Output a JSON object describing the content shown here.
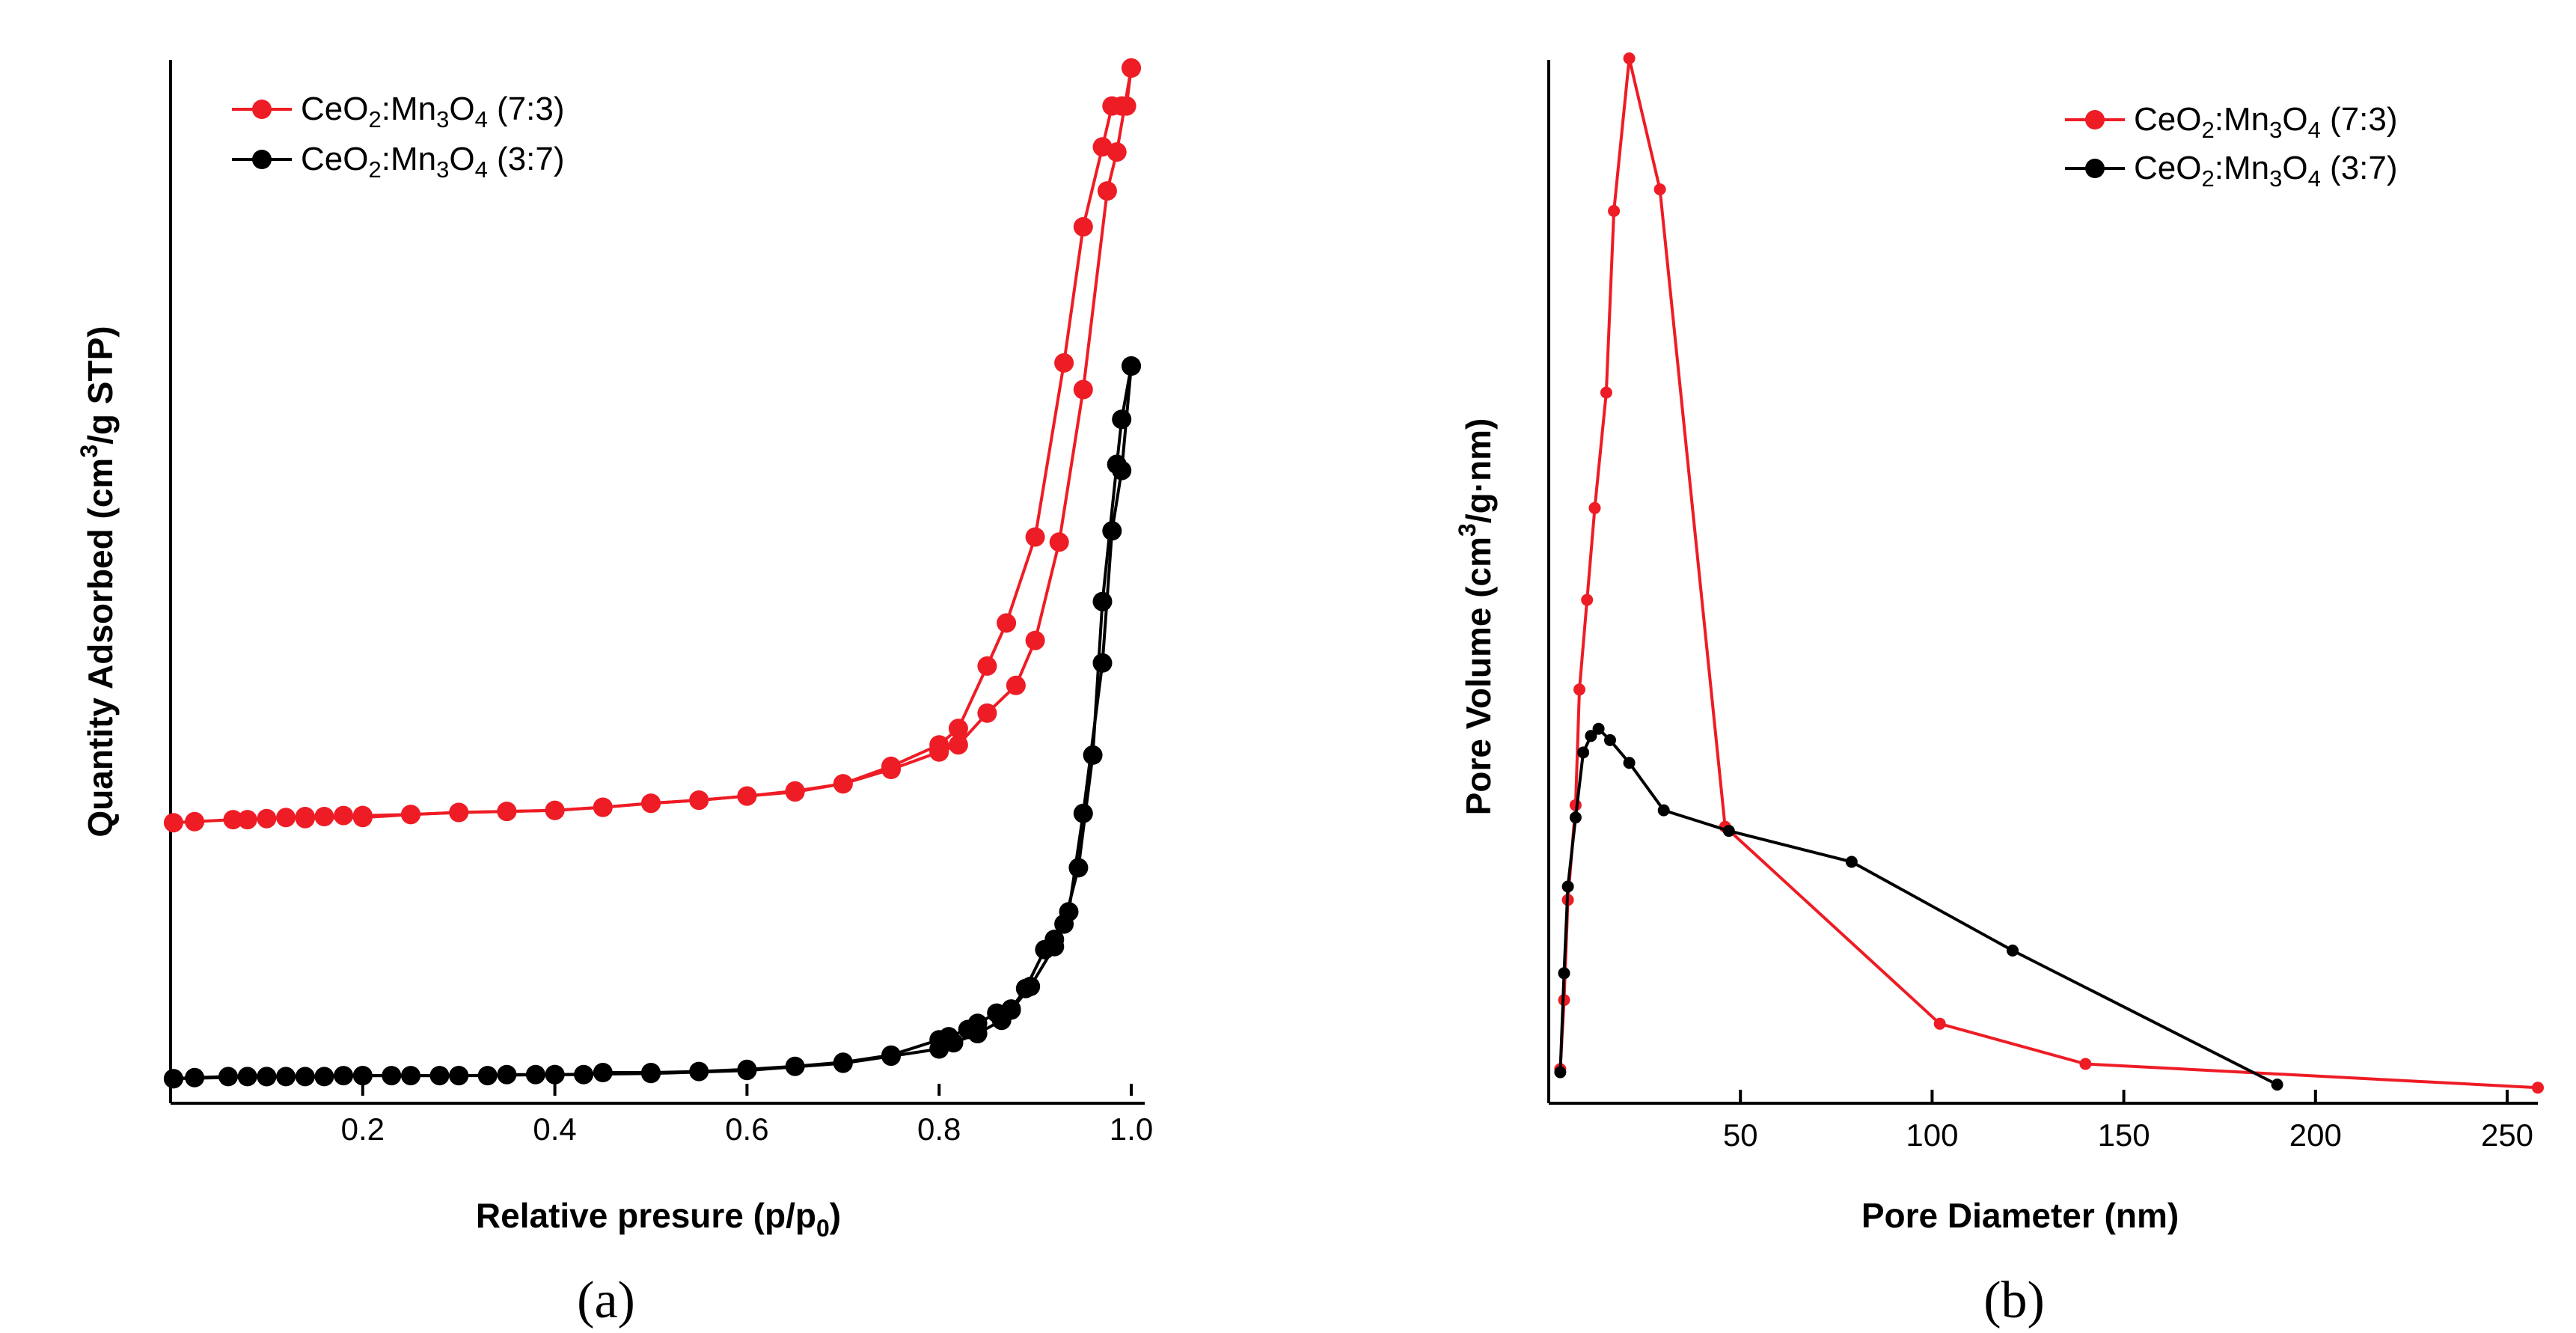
{
  "chart_data": [
    {
      "type": "line",
      "panel_label": "(a)",
      "title": "",
      "xlabel": "Relative presure (p/p0)",
      "xlabel_main": "Relative presure (p/p",
      "xlabel_sub": "0",
      "xlabel_end": ")",
      "ylabel": "Quantity Adsorbed (cm3/g STP)",
      "ylabel_pre": "Quantity Adsorbed (cm",
      "ylabel_sup": "3",
      "ylabel_post": "/g STP)",
      "xlim": [
        0,
        1.0
      ],
      "ylim": [
        0,
        100
      ],
      "xticks": [
        0.2,
        0.4,
        0.6,
        0.8,
        1.0
      ],
      "xtick_labels": [
        "0.2",
        "0.4",
        "0.6",
        "0.8",
        "1.0"
      ],
      "y_ticks_shown": false,
      "legend_position": "top-left",
      "series": [
        {
          "name": "CeO2:Mn3O4 (7:3)",
          "legend": [
            "CeO",
            "2",
            ":Mn",
            "3",
            "O",
            "4",
            " (7:3)"
          ],
          "color": "#ee1c25",
          "segments": [
            {
              "x": [
                0.003,
                0.025,
                0.065,
                0.08,
                0.1,
                0.12,
                0.14,
                0.16,
                0.18,
                0.2,
                0.25,
                0.3,
                0.35,
                0.4,
                0.45,
                0.5,
                0.55,
                0.6,
                0.65,
                0.7,
                0.75,
                0.8,
                0.82,
                0.85,
                0.87,
                0.9,
                0.93,
                0.95,
                0.97,
                0.98,
                0.99,
                0.995,
                1.0
              ],
              "y": [
                25.5,
                25.6,
                25.8,
                25.8,
                25.9,
                26.0,
                26.1,
                26.1,
                26.2,
                26.2,
                26.3,
                26.5,
                26.6,
                26.7,
                27.0,
                27.4,
                27.7,
                28.1,
                28.6,
                29.3,
                31.0,
                33.1,
                34.7,
                40.8,
                45.0,
                53.4,
                70.4,
                83.7,
                91.5,
                95.5,
                95.5,
                95.5,
                99.2
              ]
            },
            {
              "x": [
                0.14,
                0.2,
                0.25,
                0.3,
                0.35,
                0.4,
                0.45,
                0.5,
                0.55,
                0.6,
                0.65,
                0.7,
                0.75,
                0.8,
                0.82,
                0.85,
                0.88,
                0.9,
                0.925,
                0.95,
                0.975,
                0.985,
                1.0
              ],
              "y": [
                25.9,
                26.0,
                26.3,
                26.5,
                26.6,
                26.7,
                27.0,
                27.4,
                27.7,
                28.1,
                28.5,
                29.3,
                30.7,
                32.4,
                33.1,
                36.2,
                38.9,
                43.3,
                52.9,
                67.8,
                87.2,
                91.0,
                99.2
              ]
            }
          ]
        },
        {
          "name": "CeO2:Mn3O4 (3:7)",
          "legend": [
            "CeO",
            "2",
            ":Mn",
            "3",
            "O",
            "4",
            " (3:7)"
          ],
          "color": "#000000",
          "segments": [
            {
              "x": [
                0.003,
                0.025,
                0.06,
                0.08,
                0.1,
                0.12,
                0.14,
                0.16,
                0.18,
                0.2,
                0.23,
                0.25,
                0.28,
                0.3,
                0.33,
                0.35,
                0.38,
                0.4,
                0.43,
                0.45,
                0.5,
                0.55,
                0.6,
                0.65,
                0.7,
                0.75,
                0.8,
                0.81,
                0.83,
                0.84,
                0.86,
                0.875,
                0.89,
                0.91,
                0.92,
                0.93,
                0.945,
                0.96,
                0.97,
                0.985,
                0.99,
                1.0
              ],
              "y": [
                0.5,
                0.6,
                0.7,
                0.7,
                0.7,
                0.7,
                0.7,
                0.7,
                0.8,
                0.8,
                0.8,
                0.8,
                0.8,
                0.8,
                0.8,
                0.9,
                0.9,
                0.9,
                0.9,
                1.1,
                1.1,
                1.2,
                1.4,
                1.7,
                2.1,
                2.8,
                4.3,
                4.6,
                5.3,
                5.9,
                6.9,
                7.3,
                9.3,
                13.1,
                14.1,
                15.6,
                21.1,
                32.1,
                47.1,
                60.5,
                64.9,
                70.1
              ]
            },
            {
              "x": [
                0.003,
                0.1,
                0.2,
                0.3,
                0.4,
                0.5,
                0.6,
                0.7,
                0.75,
                0.8,
                0.815,
                0.84,
                0.865,
                0.875,
                0.895,
                0.92,
                0.935,
                0.95,
                0.97,
                0.98,
                0.99,
                1.0
              ],
              "y": [
                0.5,
                0.7,
                0.8,
                0.8,
                0.9,
                1.0,
                1.3,
                2.0,
                2.7,
                3.4,
                4.0,
                4.9,
                6.2,
                7.2,
                9.5,
                13.4,
                16.8,
                26.4,
                41.1,
                54.0,
                59.9,
                70.1
              ]
            }
          ]
        }
      ]
    },
    {
      "type": "line",
      "panel_label": "(b)",
      "title": "",
      "xlabel": "Pore Diameter (nm)",
      "ylabel": "Pore Volume (cm3/g·nm)",
      "ylabel_pre": "Pore Volume (cm",
      "ylabel_sup": "3",
      "ylabel_post": "/g·nm)",
      "xlim": [
        0,
        258
      ],
      "ylim": [
        0,
        100
      ],
      "xticks": [
        50,
        100,
        150,
        200,
        250
      ],
      "xtick_labels": [
        "50",
        "100",
        "150",
        "200",
        "250"
      ],
      "y_ticks_shown": false,
      "legend_position": "top-right",
      "series": [
        {
          "name": "CeO2:Mn3O4 (7:3)",
          "legend": [
            "CeO",
            "2",
            ":Mn",
            "3",
            "O",
            "4",
            " (7:3)"
          ],
          "color": "#ee1c25",
          "x": [
            3,
            4,
            5,
            7,
            8,
            10,
            12,
            15,
            17,
            21,
            29,
            46,
            102,
            140,
            258
          ],
          "y": [
            2.0,
            8.7,
            18.4,
            27.6,
            38.8,
            47.5,
            56.4,
            67.6,
            85.2,
            100.0,
            87.3,
            25.5,
            6.4,
            2.5,
            0.2
          ]
        },
        {
          "name": "CeO2:Mn3O4 (3:7)",
          "legend": [
            "CeO",
            "2",
            ":Mn",
            "3",
            "O",
            "4",
            " (3:7)"
          ],
          "color": "#000000",
          "x": [
            3,
            4,
            5,
            7,
            9,
            11,
            13,
            16,
            21,
            30,
            47,
            79,
            121,
            190
          ],
          "y": [
            1.7,
            11.3,
            19.7,
            26.4,
            32.7,
            34.3,
            35.0,
            33.9,
            31.7,
            27.1,
            25.1,
            22.1,
            13.5,
            0.5
          ]
        }
      ]
    }
  ]
}
